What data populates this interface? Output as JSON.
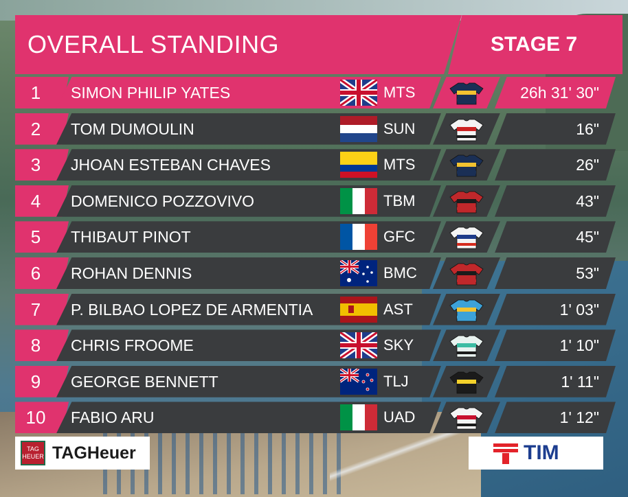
{
  "header": {
    "title": "OVERALL STANDING",
    "stage": "STAGE 7"
  },
  "standings": [
    {
      "rank": "1",
      "name": "SIMON PHILIP YATES",
      "flag": "uk-flag-icon",
      "team": "MTS",
      "jersey": "mitchelton-scott-jersey-icon",
      "time": "26h 31' 30\""
    },
    {
      "rank": "2",
      "name": "TOM DUMOULIN",
      "flag": "netherlands-flag-icon",
      "team": "SUN",
      "jersey": "sunweb-jersey-icon",
      "time": "16\""
    },
    {
      "rank": "3",
      "name": "JHOAN ESTEBAN CHAVES",
      "flag": "colombia-flag-icon",
      "team": "MTS",
      "jersey": "mitchelton-scott-jersey-icon",
      "time": "26\""
    },
    {
      "rank": "4",
      "name": "DOMENICO POZZOVIVO",
      "flag": "italy-flag-icon",
      "team": "TBM",
      "jersey": "bahrain-merida-jersey-icon",
      "time": "43\""
    },
    {
      "rank": "5",
      "name": "THIBAUT PINOT",
      "flag": "france-flag-icon",
      "team": "GFC",
      "jersey": "groupama-fdj-jersey-icon",
      "time": "45\""
    },
    {
      "rank": "6",
      "name": "ROHAN DENNIS",
      "flag": "australia-flag-icon",
      "team": "BMC",
      "jersey": "bmc-jersey-icon",
      "time": "53\""
    },
    {
      "rank": "7",
      "name": "P. BILBAO LOPEZ DE ARMENTIA",
      "flag": "spain-flag-icon",
      "team": "AST",
      "jersey": "astana-jersey-icon",
      "time": "1' 03\""
    },
    {
      "rank": "8",
      "name": "CHRIS FROOME",
      "flag": "uk-flag-icon",
      "team": "SKY",
      "jersey": "sky-jersey-icon",
      "time": "1' 10\""
    },
    {
      "rank": "9",
      "name": "GEORGE BENNETT",
      "flag": "new-zealand-flag-icon",
      "team": "TLJ",
      "jersey": "lottonl-jumbo-jersey-icon",
      "time": "1' 11\""
    },
    {
      "rank": "10",
      "name": "FABIO ARU",
      "flag": "italy-flag-icon",
      "team": "UAD",
      "jersey": "uae-emirates-jersey-icon",
      "time": "1' 12\""
    }
  ],
  "sponsors": {
    "left_badge": "TAG HEUER",
    "left_text": "TAGHeuer",
    "right_text": "TIM"
  },
  "colors": {
    "accent": "#e0336e",
    "row_bg": "#3a3c3e",
    "text": "#ffffff",
    "tim_blue": "#1c3d8f",
    "tim_red": "#e3232a"
  }
}
